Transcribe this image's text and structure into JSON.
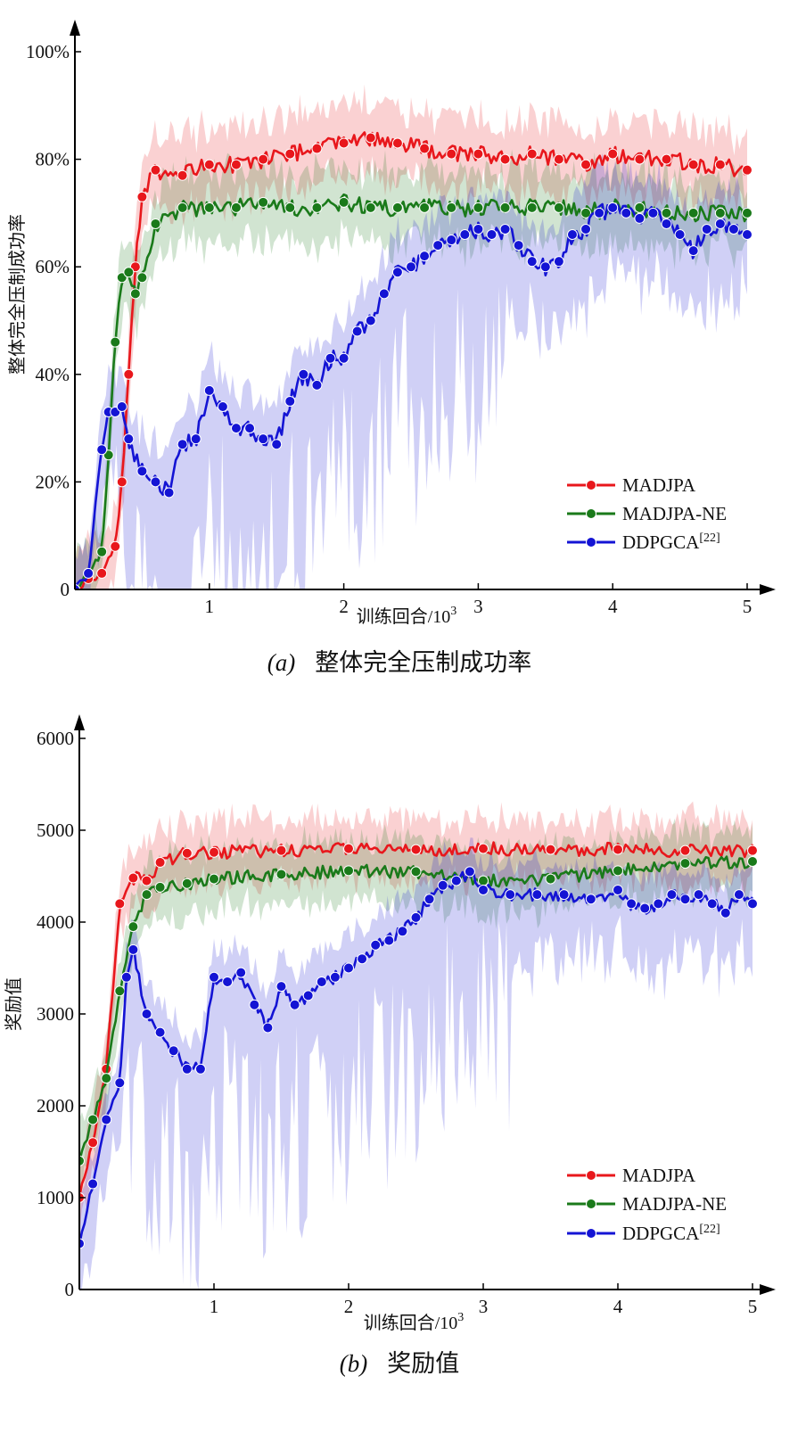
{
  "colors": {
    "MADJPA": "#e8171c",
    "MADJPA-NE": "#1a7a1a",
    "DDPGCA": "#1414d4"
  },
  "chart_data": [
    {
      "type": "line",
      "caption": {
        "letter": "(a)",
        "text": "整体完全压制成功率"
      },
      "ylabel": "整体完全压制成功率",
      "xlabel": {
        "text": "训练回合/10",
        "sup": "3"
      },
      "xlim": [
        0,
        5
      ],
      "ylim": [
        0,
        100
      ],
      "xticks": [
        "1",
        "2",
        "3",
        "4",
        "5"
      ],
      "yticks": [
        "0",
        "20%",
        "40%",
        "60%",
        "80%",
        "100%"
      ],
      "legend_position": "bottom-right",
      "series": [
        {
          "name": "MADJPA",
          "key": "MADJPA",
          "shaded_band": true,
          "x": [
            0,
            0.1,
            0.2,
            0.3,
            0.35,
            0.4,
            0.45,
            0.5,
            0.6,
            0.8,
            1.0,
            1.2,
            1.4,
            1.6,
            1.8,
            2.0,
            2.2,
            2.4,
            2.6,
            2.8,
            3.0,
            3.2,
            3.4,
            3.6,
            3.8,
            4.0,
            4.2,
            4.4,
            4.6,
            4.8,
            5.0
          ],
          "y": [
            0,
            2,
            3,
            8,
            20,
            40,
            60,
            73,
            78,
            77,
            79,
            79,
            80,
            81,
            82,
            83,
            84,
            83,
            82,
            81,
            81,
            80,
            81,
            80,
            79,
            81,
            80,
            80,
            79,
            79,
            78
          ]
        },
        {
          "name": "MADJPA-NE",
          "key": "MADJPA-NE",
          "shaded_band": true,
          "x": [
            0,
            0.1,
            0.2,
            0.25,
            0.3,
            0.35,
            0.4,
            0.45,
            0.5,
            0.6,
            0.8,
            1.0,
            1.2,
            1.4,
            1.6,
            1.8,
            2.0,
            2.2,
            2.4,
            2.6,
            2.8,
            3.0,
            3.2,
            3.4,
            3.6,
            3.8,
            4.0,
            4.2,
            4.4,
            4.6,
            4.8,
            5.0
          ],
          "y": [
            0,
            3,
            7,
            25,
            46,
            58,
            59,
            55,
            58,
            68,
            71,
            71,
            71,
            72,
            71,
            71,
            72,
            71,
            71,
            71,
            71,
            71,
            71,
            71,
            71,
            70,
            71,
            71,
            70,
            70,
            70,
            70
          ]
        },
        {
          "name": "DDPGCA",
          "key": "DDPGCA",
          "sup": "[22]",
          "shaded_band": true,
          "x": [
            0,
            0.1,
            0.2,
            0.25,
            0.3,
            0.35,
            0.4,
            0.5,
            0.6,
            0.7,
            0.8,
            0.9,
            1.0,
            1.1,
            1.2,
            1.3,
            1.4,
            1.5,
            1.6,
            1.7,
            1.8,
            1.9,
            2.0,
            2.1,
            2.2,
            2.3,
            2.4,
            2.5,
            2.6,
            2.7,
            2.8,
            2.9,
            3.0,
            3.1,
            3.2,
            3.3,
            3.4,
            3.5,
            3.6,
            3.7,
            3.8,
            3.9,
            4.0,
            4.1,
            4.2,
            4.3,
            4.4,
            4.5,
            4.6,
            4.7,
            4.8,
            4.9,
            5.0
          ],
          "y": [
            0,
            3,
            26,
            33,
            33,
            34,
            28,
            22,
            20,
            18,
            27,
            28,
            37,
            34,
            30,
            30,
            28,
            27,
            35,
            40,
            38,
            43,
            43,
            48,
            50,
            55,
            59,
            60,
            62,
            64,
            65,
            66,
            67,
            66,
            67,
            64,
            61,
            60,
            61,
            66,
            67,
            70,
            71,
            70,
            69,
            70,
            68,
            66,
            63,
            67,
            68,
            67,
            66
          ]
        }
      ]
    },
    {
      "type": "line",
      "caption": {
        "letter": "(b)",
        "text": "奖励值"
      },
      "ylabel": "奖励值",
      "xlabel": {
        "text": "训练回合/10",
        "sup": "3"
      },
      "xlim": [
        0,
        5
      ],
      "ylim": [
        0,
        6000
      ],
      "xticks": [
        "1",
        "2",
        "3",
        "4",
        "5"
      ],
      "yticks": [
        "0",
        "1000",
        "2000",
        "3000",
        "4000",
        "5000",
        "6000"
      ],
      "legend_position": "bottom-right",
      "series": [
        {
          "name": "MADJPA",
          "key": "MADJPA",
          "shaded_band": true,
          "x": [
            0,
            0.1,
            0.2,
            0.3,
            0.4,
            0.5,
            0.6,
            0.8,
            1.0,
            1.5,
            2.0,
            2.5,
            3.0,
            3.5,
            4.0,
            4.5,
            5.0
          ],
          "y": [
            1000,
            1600,
            2400,
            4200,
            4480,
            4450,
            4650,
            4750,
            4760,
            4780,
            4800,
            4790,
            4800,
            4790,
            4790,
            4780,
            4780
          ]
        },
        {
          "name": "MADJPA-NE",
          "key": "MADJPA-NE",
          "shaded_band": true,
          "x": [
            0,
            0.1,
            0.2,
            0.3,
            0.4,
            0.5,
            0.6,
            0.8,
            1.0,
            1.5,
            2.0,
            2.5,
            3.0,
            3.5,
            4.0,
            4.5,
            5.0
          ],
          "y": [
            1400,
            1850,
            2300,
            3250,
            3950,
            4300,
            4380,
            4420,
            4470,
            4520,
            4560,
            4550,
            4450,
            4470,
            4560,
            4640,
            4660
          ]
        },
        {
          "name": "DDPGCA",
          "key": "DDPGCA",
          "sup": "[22]",
          "shaded_band": true,
          "x": [
            0,
            0.1,
            0.2,
            0.3,
            0.35,
            0.4,
            0.5,
            0.6,
            0.7,
            0.8,
            0.9,
            1.0,
            1.1,
            1.2,
            1.3,
            1.4,
            1.5,
            1.6,
            1.7,
            1.8,
            1.9,
            2.0,
            2.1,
            2.2,
            2.3,
            2.4,
            2.5,
            2.6,
            2.7,
            2.8,
            2.9,
            3.0,
            3.2,
            3.4,
            3.6,
            3.8,
            4.0,
            4.1,
            4.2,
            4.3,
            4.4,
            4.5,
            4.6,
            4.7,
            4.8,
            4.9,
            5.0
          ],
          "y": [
            500,
            1150,
            1850,
            2250,
            3400,
            3700,
            3000,
            2800,
            2600,
            2400,
            2400,
            3400,
            3350,
            3450,
            3100,
            2850,
            3300,
            3100,
            3200,
            3350,
            3400,
            3500,
            3600,
            3750,
            3800,
            3900,
            4050,
            4250,
            4400,
            4450,
            4550,
            4350,
            4300,
            4300,
            4300,
            4250,
            4350,
            4200,
            4150,
            4200,
            4300,
            4250,
            4300,
            4200,
            4100,
            4300,
            4200
          ]
        }
      ]
    }
  ]
}
